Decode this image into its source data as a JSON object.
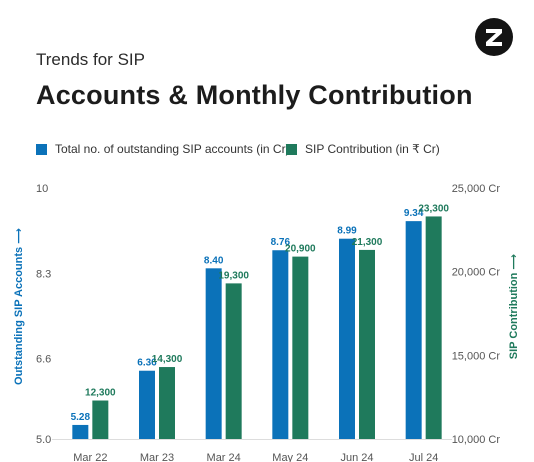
{
  "header": {
    "supertitle": "Trends for SIP",
    "title": "Accounts & Monthly Contribution",
    "logo_icon": "z-logo-icon"
  },
  "colors": {
    "accounts": "#0b72b9",
    "contribution": "#1f7a5c",
    "axis_text": "#555555",
    "grid": "#e9e9e9"
  },
  "chart_data": {
    "type": "bar",
    "categories": [
      "Mar 22",
      "Mar 23",
      "Mar 24",
      "May 24",
      "Jun 24",
      "Jul 24"
    ],
    "series": [
      {
        "name": "Total no. of outstanding SIP accounts (in Cr)",
        "axis": "left",
        "values": [
          5.28,
          6.36,
          8.4,
          8.76,
          8.99,
          9.34
        ],
        "labels": [
          "5.28",
          "6.36",
          "8.40",
          "8.76",
          "8.99",
          "9.34"
        ]
      },
      {
        "name": "SIP Contribution (in ₹ Cr)",
        "axis": "right",
        "values": [
          12300,
          14300,
          19300,
          20900,
          21300,
          23300
        ],
        "labels": [
          "12,300",
          "14,300",
          "19,300",
          "20,900",
          "21,300",
          "23,300"
        ]
      }
    ],
    "y_left": {
      "label": "Outstanding SIP Accounts",
      "arrow": "⟶",
      "ticks": [
        5.0,
        6.6,
        8.3,
        10
      ],
      "tick_labels": [
        "5.0",
        "6.6",
        "8.3",
        "10"
      ],
      "range": [
        5.0,
        10
      ]
    },
    "y_right": {
      "label": "SIP Contribution",
      "arrow": "⟶",
      "ticks": [
        10000,
        15000,
        20000,
        25000
      ],
      "tick_labels": [
        "10,000 Cr",
        "15,000 Cr",
        "20,000 Cr",
        "25,000 Cr"
      ],
      "range": [
        10000,
        25000
      ]
    },
    "legend_position": "top-left",
    "grid": false
  }
}
